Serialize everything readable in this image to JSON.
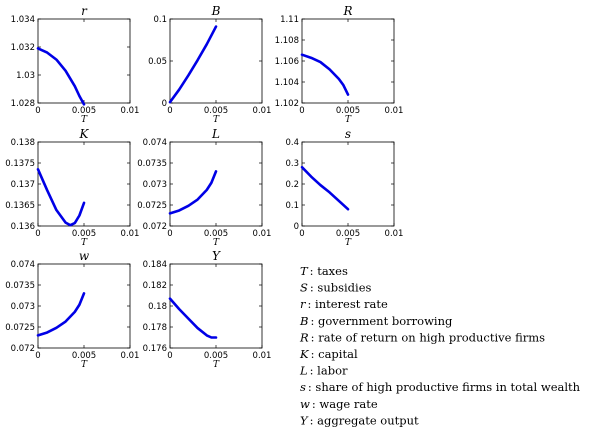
{
  "chart_data": [
    {
      "type": "line",
      "title": "r",
      "xlabel": "T",
      "xlim": [
        0,
        0.01
      ],
      "ylim": [
        1.028,
        1.034
      ],
      "xticks": [
        "0",
        "0.005",
        "0.01"
      ],
      "yticks": [
        "1.028",
        "1.03",
        "1.032",
        "1.034"
      ],
      "series": [
        {
          "x": [
            0,
            0.001,
            0.002,
            0.003,
            0.004,
            0.0045,
            0.005
          ],
          "y": [
            1.0319,
            1.0316,
            1.0311,
            1.0303,
            1.0292,
            1.0285,
            1.0279
          ]
        }
      ]
    },
    {
      "type": "line",
      "title": "B",
      "xlabel": "T",
      "xlim": [
        0,
        0.01
      ],
      "ylim": [
        0,
        0.1
      ],
      "xticks": [
        "0",
        "0.005",
        "0.01"
      ],
      "yticks": [
        "0",
        "0.05",
        "0.1"
      ],
      "series": [
        {
          "x": [
            0,
            0.001,
            0.002,
            0.003,
            0.004,
            0.005
          ],
          "y": [
            0.001,
            0.016,
            0.033,
            0.051,
            0.07,
            0.091
          ]
        }
      ]
    },
    {
      "type": "line",
      "title": "R",
      "xlabel": "T",
      "xlim": [
        0,
        0.01
      ],
      "ylim": [
        1.102,
        1.11
      ],
      "xticks": [
        "0",
        "0.005",
        "0.01"
      ],
      "yticks": [
        "1.102",
        "1.104",
        "1.106",
        "1.108",
        "1.11"
      ],
      "series": [
        {
          "x": [
            0,
            0.001,
            0.002,
            0.003,
            0.004,
            0.0045,
            0.005
          ],
          "y": [
            1.1066,
            1.1063,
            1.1059,
            1.1052,
            1.1043,
            1.1037,
            1.1028
          ]
        }
      ]
    },
    {
      "type": "line",
      "title": "K",
      "xlabel": "T",
      "xlim": [
        0,
        0.01
      ],
      "ylim": [
        0.136,
        0.138
      ],
      "xticks": [
        "0",
        "0.005",
        "0.01"
      ],
      "yticks": [
        "0.136",
        "0.1365",
        "0.137",
        "0.1375",
        "0.138"
      ],
      "series": [
        {
          "x": [
            0,
            0.001,
            0.002,
            0.003,
            0.0035,
            0.004,
            0.0045,
            0.005
          ],
          "y": [
            0.13735,
            0.13685,
            0.13638,
            0.13608,
            0.13602,
            0.13607,
            0.13625,
            0.13655
          ]
        }
      ]
    },
    {
      "type": "line",
      "title": "L",
      "xlabel": "T",
      "xlim": [
        0,
        0.01
      ],
      "ylim": [
        0.072,
        0.074
      ],
      "xticks": [
        "0",
        "0.005",
        "0.01"
      ],
      "yticks": [
        "0.072",
        "0.0725",
        "0.073",
        "0.0735",
        "0.074"
      ],
      "series": [
        {
          "x": [
            0,
            0.001,
            0.002,
            0.003,
            0.004,
            0.0045,
            0.005
          ],
          "y": [
            0.0723,
            0.07237,
            0.07248,
            0.07263,
            0.07286,
            0.07303,
            0.0733
          ]
        }
      ]
    },
    {
      "type": "line",
      "title": "s",
      "xlabel": "T",
      "xlim": [
        0,
        0.01
      ],
      "ylim": [
        0,
        0.4
      ],
      "xticks": [
        "0",
        "0.005",
        "0.01"
      ],
      "yticks": [
        "0",
        "0.1",
        "0.2",
        "0.3",
        "0.4"
      ],
      "series": [
        {
          "x": [
            0,
            0.001,
            0.002,
            0.003,
            0.004,
            0.005
          ],
          "y": [
            0.28,
            0.235,
            0.195,
            0.16,
            0.12,
            0.08
          ]
        }
      ]
    },
    {
      "type": "line",
      "title": "w",
      "xlabel": "T",
      "xlim": [
        0,
        0.01
      ],
      "ylim": [
        0.072,
        0.074
      ],
      "xticks": [
        "0",
        "0.005",
        "0.01"
      ],
      "yticks": [
        "0.072",
        "0.0725",
        "0.073",
        "0.0735",
        "0.074"
      ],
      "series": [
        {
          "x": [
            0,
            0.001,
            0.002,
            0.003,
            0.004,
            0.0045,
            0.005
          ],
          "y": [
            0.0723,
            0.07237,
            0.07248,
            0.07263,
            0.07286,
            0.07303,
            0.0733
          ]
        }
      ]
    },
    {
      "type": "line",
      "title": "Y",
      "xlabel": "T",
      "xlim": [
        0,
        0.01
      ],
      "ylim": [
        0.176,
        0.184
      ],
      "xticks": [
        "0",
        "0.005",
        "0.01"
      ],
      "yticks": [
        "0.176",
        "0.178",
        "0.18",
        "0.182",
        "0.184"
      ],
      "series": [
        {
          "x": [
            0,
            0.001,
            0.002,
            0.003,
            0.004,
            0.0045,
            0.005
          ],
          "y": [
            0.1807,
            0.1797,
            0.1788,
            0.1779,
            0.1772,
            0.177,
            0.177
          ]
        }
      ]
    }
  ],
  "legend": [
    {
      "symbol": "T",
      "text": ": taxes"
    },
    {
      "symbol": "S",
      "text": ": subsidies"
    },
    {
      "symbol": "r",
      "text": ": interest rate"
    },
    {
      "symbol": "B",
      "text": ": government borrowing"
    },
    {
      "symbol": "R",
      "text": ": rate of return on high productive firms"
    },
    {
      "symbol": "K",
      "text": ": capital"
    },
    {
      "symbol": "L",
      "text": ": labor"
    },
    {
      "symbol": "s",
      "text": ": share of high productive firms in total wealth"
    },
    {
      "symbol": "w",
      "text": ": wage rate"
    },
    {
      "symbol": "Y",
      "text": ": aggregate output"
    }
  ],
  "colors": {
    "series": "#0000e6",
    "axis": "#000000"
  }
}
